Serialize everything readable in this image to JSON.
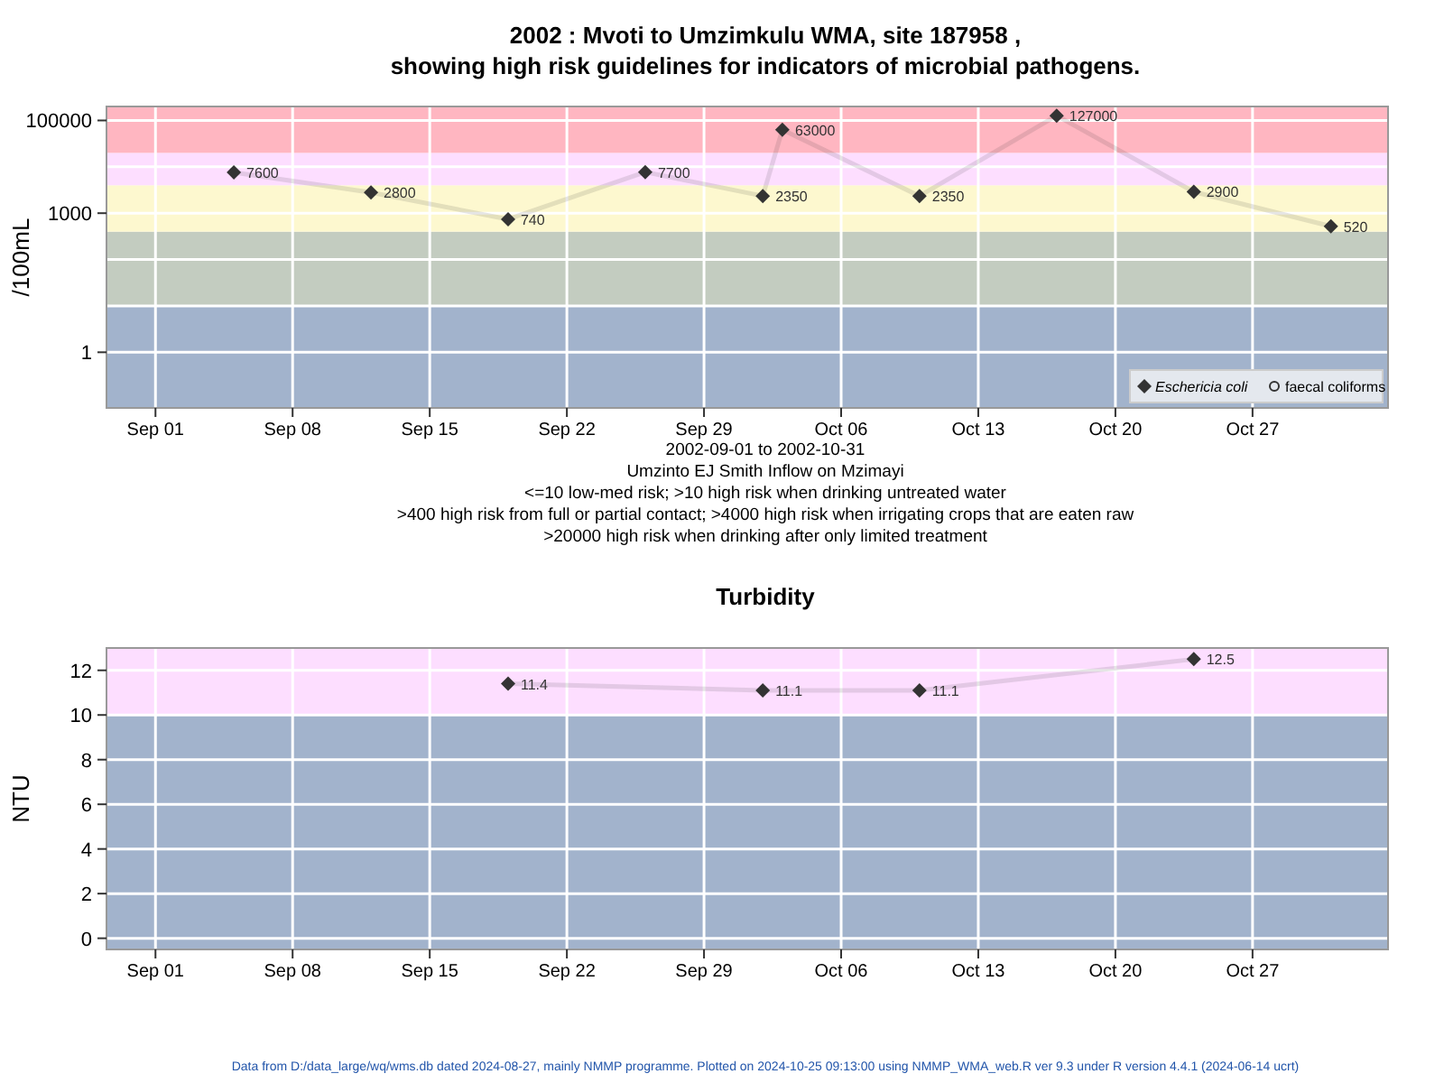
{
  "chart_data": [
    {
      "type": "line",
      "title": "2002 : Mvoti to Umzimkulu WMA, site 187958 ,\nshowing high risk guidelines for indicators of microbial pathogens.",
      "ylabel": "/100mL",
      "log": "y",
      "grid": true,
      "legend": "bottom right",
      "data_labels": true,
      "line_style": "solid",
      "x": [
        "2002-09-05",
        "2002-09-12",
        "2002-09-19",
        "2002-09-26",
        "2002-10-02",
        "2002-10-03",
        "2002-10-10",
        "2002-10-17",
        "2002-10-24",
        "2002-10-31"
      ],
      "xlim": [
        "2002-08-29T12:00",
        "2002-11-02T22:00"
      ],
      "xticks": [
        {
          "value": "2002-09-01",
          "label": "Sep 01"
        },
        {
          "value": "2002-09-08",
          "label": "Sep 08"
        },
        {
          "value": "2002-09-15",
          "label": "Sep 15"
        },
        {
          "value": "2002-09-22",
          "label": "Sep 22"
        },
        {
          "value": "2002-09-29",
          "label": "Sep 29"
        },
        {
          "value": "2002-10-06",
          "label": "Oct 06"
        },
        {
          "value": "2002-10-13",
          "label": "Oct 13"
        },
        {
          "value": "2002-10-20",
          "label": "Oct 20"
        },
        {
          "value": "2002-10-27",
          "label": "Oct 27"
        }
      ],
      "ylim": [
        0.063,
        200000
      ],
      "yticks": [
        1,
        {
          "value": 10,
          "label": null
        },
        {
          "value": 100,
          "label": null
        },
        1000,
        {
          "value": 10000,
          "label": null
        },
        100000
      ],
      "series": [
        {
          "name": "Eschericia coli",
          "color": "#333333",
          "marker": "diamond",
          "values": [
            7600,
            2800,
            740,
            7700,
            2350,
            63000,
            2350,
            127000,
            2900,
            520
          ]
        },
        {
          "name": "faecal coliforms",
          "color": "#333333",
          "marker": "circle",
          "values": [
            null,
            null,
            null,
            null,
            null,
            null,
            null,
            null,
            null,
            null
          ]
        }
      ],
      "bands": [
        {
          "axis": "y",
          "from": 0.063,
          "to": 10,
          "color": "#a2b3cc"
        },
        {
          "axis": "y",
          "from": 10,
          "to": 400,
          "color": "#c3ccc0"
        },
        {
          "axis": "y",
          "from": 400,
          "to": 4000,
          "color": "#fdf8cf"
        },
        {
          "axis": "y",
          "from": 4000,
          "to": 20000,
          "color": "#fddeff"
        },
        {
          "axis": "y",
          "from": 20000,
          "to": 200000,
          "color": "#ffb6c1"
        }
      ],
      "annotations": [
        "2002-09-01 to 2002-10-31",
        "Umzinto EJ Smith Inflow on Mzimayi",
        "<=10 low-med risk; >10 high risk when drinking untreated water",
        ">400 high risk from full or partial contact; >4000 high risk when irrigating crops that are eaten raw",
        ">20000 high risk when drinking after only limited treatment"
      ]
    },
    {
      "type": "line",
      "title": "Turbidity",
      "ylabel": "NTU",
      "grid": true,
      "data_labels": true,
      "line_style": "solid",
      "x": [
        "2002-09-19",
        "2002-10-02",
        "2002-10-10",
        "2002-10-24"
      ],
      "xlim": [
        "2002-08-29T12:00",
        "2002-11-02T22:00"
      ],
      "xticks": [
        {
          "value": "2002-09-01",
          "label": "Sep 01"
        },
        {
          "value": "2002-09-08",
          "label": "Sep 08"
        },
        {
          "value": "2002-09-15",
          "label": "Sep 15"
        },
        {
          "value": "2002-09-22",
          "label": "Sep 22"
        },
        {
          "value": "2002-09-29",
          "label": "Sep 29"
        },
        {
          "value": "2002-10-06",
          "label": "Oct 06"
        },
        {
          "value": "2002-10-13",
          "label": "Oct 13"
        },
        {
          "value": "2002-10-20",
          "label": "Oct 20"
        },
        {
          "value": "2002-10-27",
          "label": "Oct 27"
        }
      ],
      "ylim": [
        -0.5,
        13
      ],
      "yticks": [
        0,
        2,
        4,
        6,
        8,
        10,
        12
      ],
      "series": [
        {
          "color": "#333333",
          "marker": "diamond",
          "values": [
            11.4,
            11.1,
            11.1,
            12.5
          ]
        }
      ],
      "bands": [
        {
          "axis": "y",
          "from": -0.5,
          "to": 10,
          "color": "#a2b3cc"
        },
        {
          "axis": "y",
          "from": 10,
          "to": 13,
          "color": "#fddeff"
        }
      ],
      "annotations": [
        "Data from D:/data_large/wq/wms.db dated 2024-08-27, mainly NMMP programme. Plotted on 2024-10-25 09:13:00 using NMMP_WMA_web.R ver 9.3 under R version 4.4.1 (2024-06-14 ucrt)"
      ]
    }
  ]
}
